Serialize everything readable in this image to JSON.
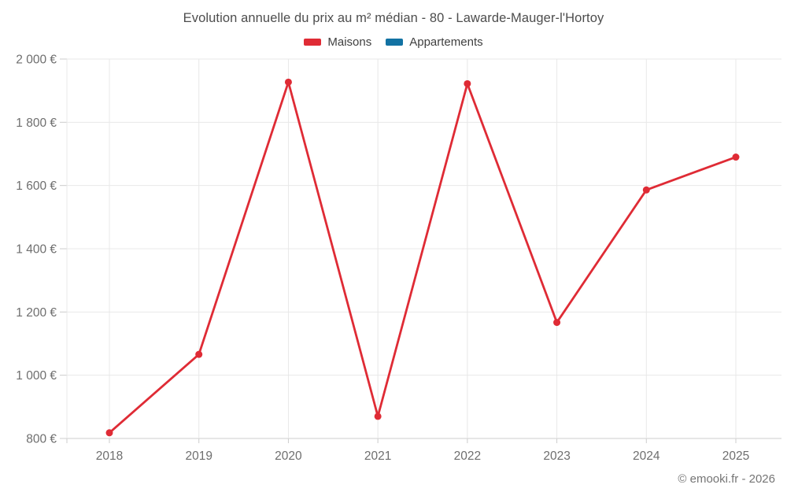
{
  "title": "Evolution annuelle du prix au m² médian - 80 - Lawarde-Mauger-l'Hortoy",
  "legend": [
    {
      "label": "Maisons",
      "color": "#df2b35"
    },
    {
      "label": "Appartements",
      "color": "#1272a3"
    }
  ],
  "footer": "© emooki.fr - 2026",
  "colors": {
    "maisons_red": "#df2b35",
    "appartements_blue": "#1272a3",
    "gridline": "#e8e8e8",
    "axis_line": "#cccccc",
    "tick_text": "#6e6e6e",
    "title_text": "#4d4d4d"
  },
  "chart_data": {
    "type": "line",
    "title": "Evolution annuelle du prix au m² médian - 80 - Lawarde-Mauger-l'Hortoy",
    "categories": [
      "2018",
      "2019",
      "2020",
      "2021",
      "2022",
      "2023",
      "2024",
      "2025"
    ],
    "series": [
      {
        "name": "Maisons",
        "color": "#df2b35",
        "values": [
          818,
          1066,
          1927,
          870,
          1922,
          1167,
          1586,
          1690
        ]
      },
      {
        "name": "Appartements",
        "color": "#1272a3",
        "values": []
      }
    ],
    "xlabel": "",
    "ylabel": "",
    "ylim": [
      800,
      2000
    ],
    "yticks": [
      800,
      1000,
      1200,
      1400,
      1600,
      1800,
      2000
    ],
    "ytick_labels": [
      "800 €",
      "1 000 €",
      "1 200 €",
      "1 400 €",
      "1 600 €",
      "1 800 €",
      "2 000 €"
    ],
    "grid": "on",
    "legend_position": "top-center",
    "marker": "circle"
  }
}
